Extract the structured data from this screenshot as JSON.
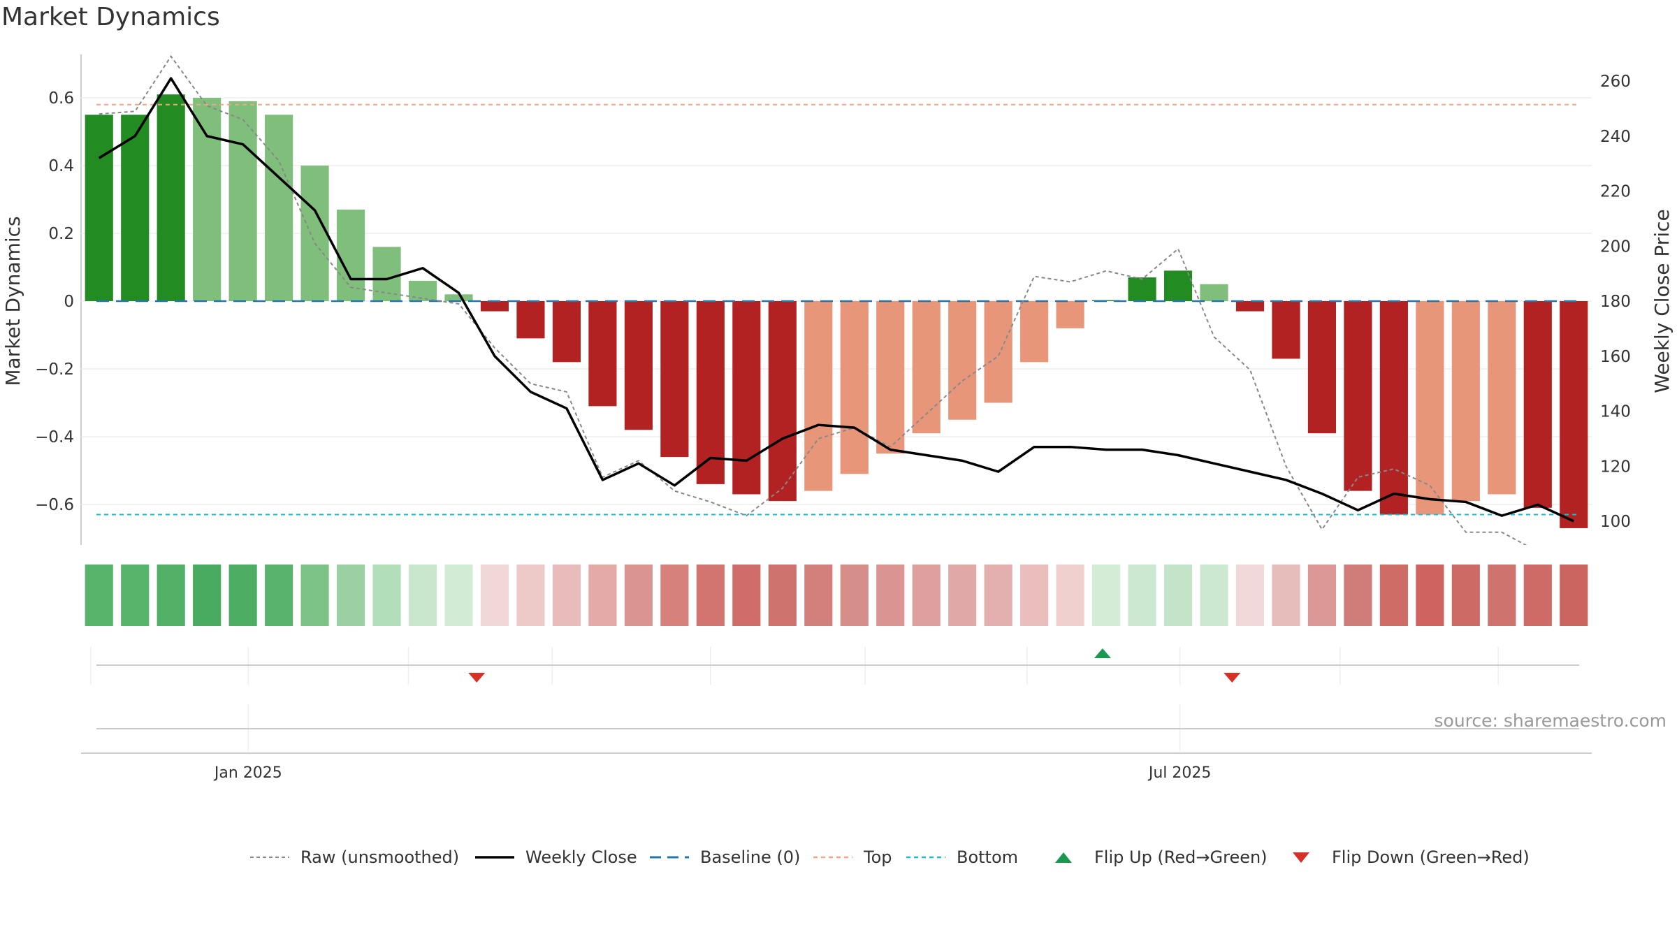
{
  "page": {
    "title": "Market Dynamics",
    "source": "source: sharemaestro.com"
  },
  "colors": {
    "strong_green": "#228B22",
    "light_green": "#7FBF7B",
    "strong_red": "#B22222",
    "light_red": "#E8967A",
    "close_line": "#000000",
    "raw_line": "#888888",
    "baseline": "#1F77B4",
    "top": "#F4A582",
    "bottom": "#17BECF",
    "flip_up": "#1A9850",
    "flip_down": "#D73027"
  },
  "legend": [
    {
      "key": "raw",
      "label": "Raw (unsmoothed)"
    },
    {
      "key": "close",
      "label": "Weekly Close"
    },
    {
      "key": "baseline",
      "label": "Baseline (0)"
    },
    {
      "key": "top",
      "label": "Top"
    },
    {
      "key": "bottom",
      "label": "Bottom"
    },
    {
      "key": "flip_up",
      "label": "Flip Up (Red→Green)"
    },
    {
      "key": "flip_down",
      "label": "Flip Down (Green→Red)"
    }
  ],
  "chart_data": {
    "type": "bar",
    "title": "Market Dynamics",
    "ylabel": "Market Dynamics",
    "y2label": "Weekly Close Price",
    "ylim": [
      -0.72,
      0.72
    ],
    "y2lim": [
      91,
      270
    ],
    "yticks": [
      -0.6,
      -0.4,
      -0.2,
      0,
      0.2,
      0.4,
      0.6
    ],
    "yticklabels": [
      "−0.6",
      "−0.4",
      "−0.2",
      "0",
      "0.2",
      "0.4",
      "0.6"
    ],
    "y2ticks": [
      100,
      120,
      140,
      160,
      180,
      200,
      220,
      240,
      260
    ],
    "xticks": [
      {
        "index": 4.65,
        "label": "Jan 2025"
      },
      {
        "index": 30.55,
        "label": "Jul 2025"
      }
    ],
    "x_gridlines": [
      4.65,
      9.1,
      13.1,
      17.5,
      21.8,
      26.3,
      30.55,
      35.0,
      39.4
    ],
    "grid": true,
    "legend_position": "bottom",
    "top_line": 0.58,
    "bottom_line": -0.63,
    "baseline": 0,
    "weeks": 42,
    "momentum": [
      0.55,
      0.55,
      0.61,
      0.6,
      0.59,
      0.55,
      0.4,
      0.27,
      0.16,
      0.06,
      0.02,
      -0.03,
      -0.11,
      -0.18,
      -0.31,
      -0.38,
      -0.46,
      -0.54,
      -0.57,
      -0.59,
      -0.56,
      -0.51,
      -0.45,
      -0.39,
      -0.35,
      -0.3,
      -0.18,
      -0.08,
      0.003,
      0.07,
      0.09,
      0.05,
      -0.03,
      -0.17,
      -0.39,
      -0.56,
      -0.63,
      -0.63,
      -0.59,
      -0.57,
      -0.61,
      -0.67
    ],
    "bar_tone": [
      "strong",
      "strong",
      "strong",
      "light",
      "light",
      "light",
      "light",
      "light",
      "light",
      "light",
      "light",
      "strong",
      "strong",
      "strong",
      "strong",
      "strong",
      "strong",
      "strong",
      "strong",
      "strong",
      "light",
      "light",
      "light",
      "light",
      "light",
      "light",
      "light",
      "light",
      "strong",
      "strong",
      "strong",
      "light",
      "strong",
      "strong",
      "strong",
      "strong",
      "strong",
      "light",
      "light",
      "light",
      "strong",
      "strong"
    ],
    "weekly_close": [
      232,
      240,
      261,
      240,
      237,
      225,
      213,
      188,
      188,
      192,
      183,
      160,
      147,
      141,
      115,
      121,
      113,
      123,
      122,
      130,
      135,
      134,
      126,
      124,
      122,
      118,
      127,
      127,
      126,
      126,
      124,
      121,
      118,
      115,
      110,
      104,
      110,
      108,
      107,
      102,
      106,
      100
    ],
    "raw": [
      248,
      249,
      269,
      251,
      246,
      231,
      201,
      185,
      183,
      181,
      179,
      163,
      150,
      147,
      116,
      122,
      111,
      107,
      102,
      112,
      130,
      134,
      127,
      139,
      151,
      160,
      189,
      187,
      191,
      188,
      199,
      167,
      155,
      120,
      97,
      116,
      119,
      113,
      96,
      96,
      89,
      88
    ],
    "heat_strip": [
      "#56B46B",
      "#56B46B",
      "#53B167",
      "#47AA5E",
      "#4DAE63",
      "#5AB36C",
      "#7DC287",
      "#9AD0A2",
      "#B3DEBA",
      "#C9E7CD",
      "#D2EBD5",
      "#F0D6D4",
      "#EDC9C8",
      "#E8BCBA",
      "#E2A9A6",
      "#DA9591",
      "#D6817C",
      "#D27470",
      "#CE6D69",
      "#CE726E",
      "#D3807C",
      "#D68E8A",
      "#DA9593",
      "#DDA09E",
      "#E0A8A6",
      "#E3B0AF",
      "#E9BEBC",
      "#EFD0CE",
      "#D4EBD6",
      "#CDE8D1",
      "#C4E4C9",
      "#CDE8D1",
      "#F0D9D8",
      "#E7BDBC",
      "#DB9897",
      "#D07C78",
      "#CE6C66",
      "#CF6360",
      "#CC6B66",
      "#CE726E",
      "#CE6B67",
      "#CB6560"
    ],
    "flip_up": [
      {
        "index": 28.4
      }
    ],
    "flip_down": [
      {
        "index": 11.0
      },
      {
        "index": 32.0
      }
    ]
  }
}
